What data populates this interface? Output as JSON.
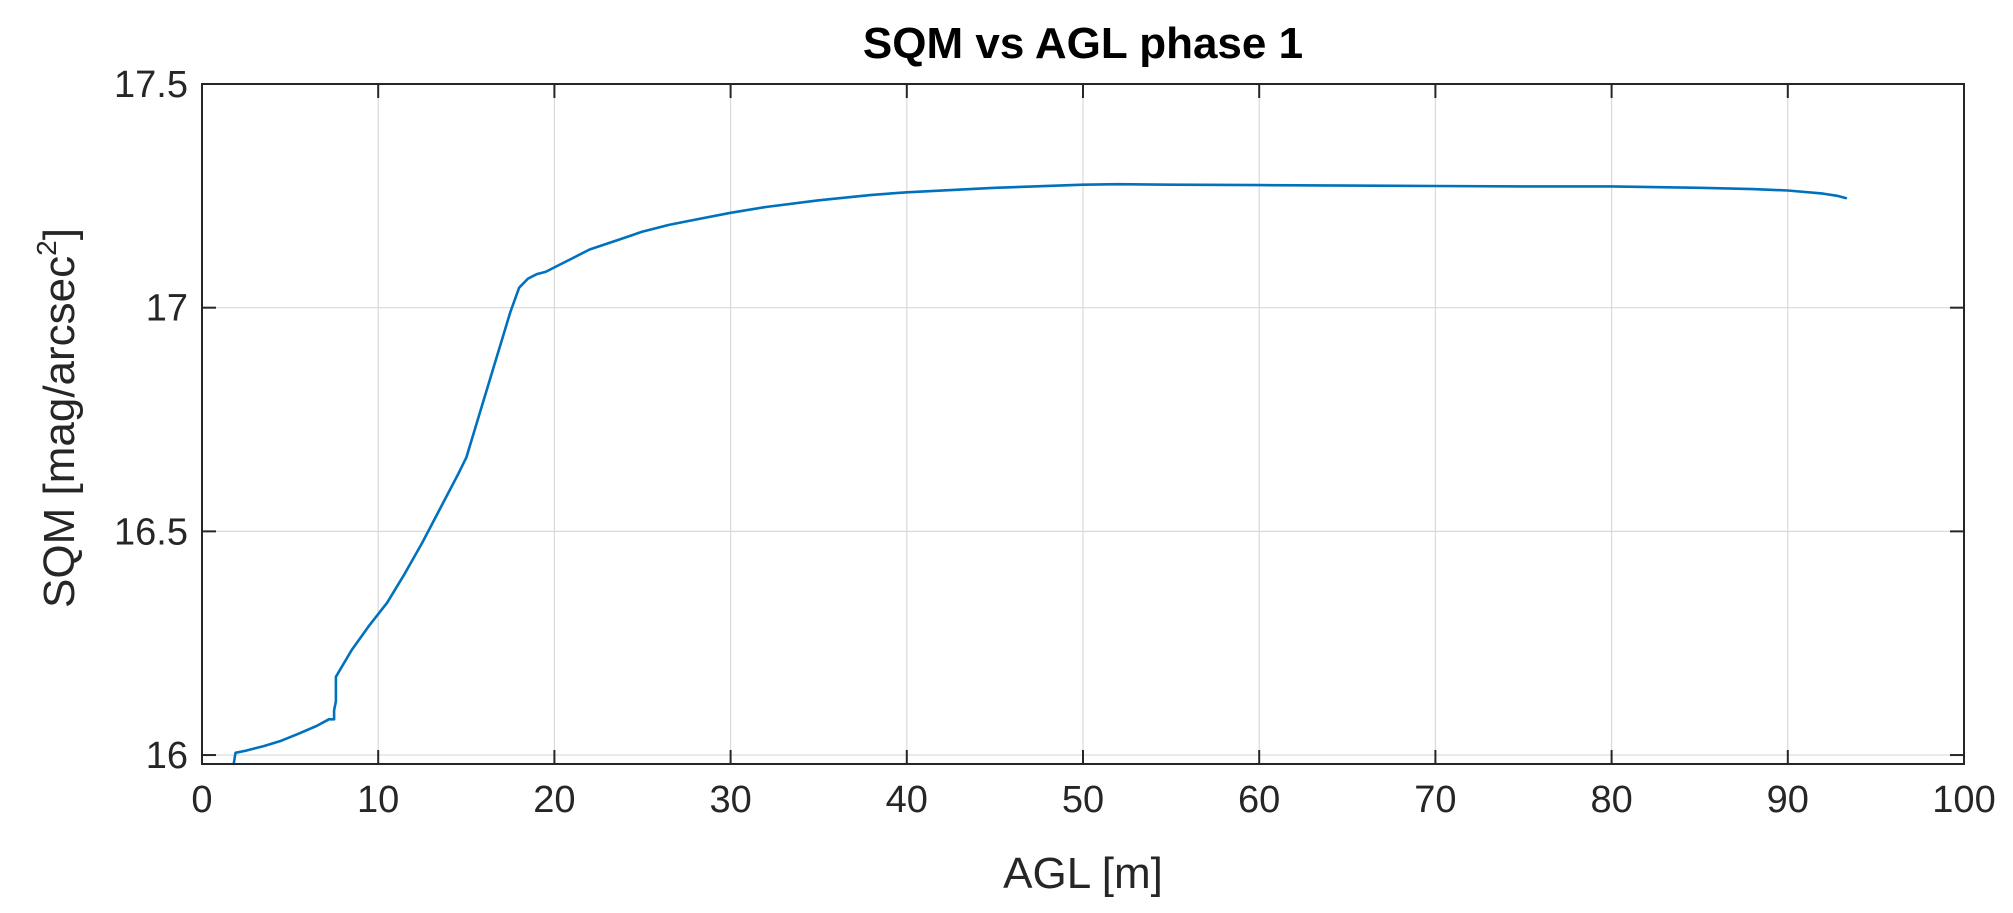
{
  "chart_data": {
    "type": "line",
    "title": "SQM vs AGL phase 1",
    "xlabel": "AGL [m]",
    "ylabel_main": "SQM [mag/arcsec",
    "ylabel_sup": "2",
    "ylabel_close": "]",
    "xlim": [
      0,
      100
    ],
    "ylim": [
      15.98,
      17.5
    ],
    "xticks": [
      0,
      10,
      20,
      30,
      40,
      50,
      60,
      70,
      80,
      90,
      100
    ],
    "xtick_labels": [
      "0",
      "10",
      "20",
      "30",
      "40",
      "50",
      "60",
      "70",
      "80",
      "90",
      "100"
    ],
    "yticks": [
      16,
      16.5,
      17,
      17.5
    ],
    "ytick_labels": [
      "16",
      "16.5",
      "17",
      "17.5"
    ],
    "grid": true,
    "line_color": "#0072BD",
    "series": [
      {
        "name": "SQM",
        "x": [
          1.8,
          1.9,
          2.5,
          3.5,
          4.5,
          5.5,
          6.5,
          7.2,
          7.5,
          7.5,
          7.6,
          7.6,
          8.5,
          9.5,
          10.5,
          11.5,
          12.5,
          13.5,
          14.5,
          15.0,
          15.5,
          16.0,
          16.5,
          17.0,
          17.5,
          18.0,
          18.5,
          19.0,
          19.5,
          20.0,
          21.0,
          22.0,
          23.5,
          25.0,
          26.5,
          28.0,
          30.0,
          32.0,
          35.0,
          38.0,
          40.0,
          45.0,
          50.0,
          52.0,
          55.0,
          60.0,
          65.0,
          70.0,
          75.0,
          80.0,
          85.0,
          88.0,
          90.0,
          92.0,
          92.8,
          93.3
        ],
        "y": [
          15.98,
          16.005,
          16.01,
          16.02,
          16.032,
          16.048,
          16.065,
          16.08,
          16.08,
          16.1,
          16.12,
          16.175,
          16.235,
          16.29,
          16.34,
          16.405,
          16.475,
          16.55,
          16.625,
          16.665,
          16.73,
          16.795,
          16.86,
          16.925,
          16.99,
          17.045,
          17.065,
          17.075,
          17.08,
          17.09,
          17.11,
          17.13,
          17.15,
          17.17,
          17.185,
          17.197,
          17.212,
          17.225,
          17.24,
          17.252,
          17.258,
          17.268,
          17.275,
          17.276,
          17.275,
          17.274,
          17.273,
          17.272,
          17.271,
          17.271,
          17.268,
          17.265,
          17.262,
          17.255,
          17.25,
          17.245
        ]
      }
    ]
  }
}
